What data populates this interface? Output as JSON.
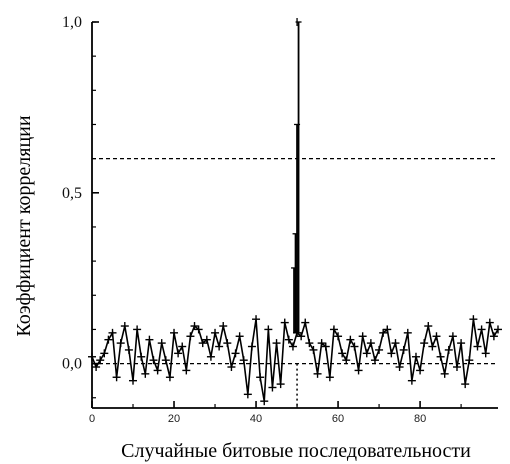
{
  "chart_data": {
    "type": "line",
    "xlabel": "Случайные битовые последовательности",
    "ylabel": "Коэффициент корреляции",
    "xlim": [
      0,
      99
    ],
    "ylim": [
      -0.13,
      1.0
    ],
    "x_ticks": [
      0,
      20,
      40,
      60,
      80
    ],
    "x_tick_labels": [
      "0",
      "20",
      "40",
      "60",
      "80"
    ],
    "y_ticks": [
      0.0,
      0.5,
      1.0
    ],
    "y_tick_labels": [
      "0,0",
      "0,5",
      "1,0"
    ],
    "threshold": {
      "y": 0.6,
      "style": "dashed"
    },
    "baseline": {
      "y": 0.0,
      "style": "dashed"
    },
    "peak_marker": {
      "x": 50,
      "style": "dotted"
    },
    "grid": false,
    "series": [
      {
        "marker": "plus",
        "color": "#000000",
        "x": [
          0,
          1,
          2,
          3,
          4,
          5,
          6,
          7,
          8,
          9,
          10,
          11,
          12,
          13,
          14,
          15,
          16,
          17,
          18,
          19,
          20,
          21,
          22,
          23,
          24,
          25,
          26,
          27,
          28,
          29,
          30,
          31,
          32,
          33,
          34,
          35,
          36,
          37,
          38,
          39,
          40,
          41,
          42,
          43,
          44,
          45,
          46,
          47,
          48,
          49,
          50,
          51,
          52,
          53,
          54,
          55,
          56,
          57,
          58,
          59,
          60,
          61,
          62,
          63,
          64,
          65,
          66,
          67,
          68,
          69,
          70,
          71,
          72,
          73,
          74,
          75,
          76,
          77,
          78,
          79,
          80,
          81,
          82,
          83,
          84,
          85,
          86,
          87,
          88,
          89,
          90,
          91,
          92,
          93,
          94,
          95,
          96,
          97,
          98,
          99
        ],
        "values": [
          0.02,
          -0.01,
          0.01,
          0.03,
          0.07,
          0.09,
          -0.04,
          0.06,
          0.11,
          0.04,
          -0.05,
          0.1,
          0.02,
          -0.03,
          0.07,
          0.01,
          -0.02,
          0.06,
          0.01,
          -0.04,
          0.09,
          0.03,
          0.05,
          -0.02,
          0.08,
          0.11,
          0.1,
          0.06,
          0.07,
          0.02,
          0.09,
          0.05,
          0.11,
          0.06,
          -0.01,
          0.03,
          0.08,
          0.01,
          -0.09,
          0.05,
          0.13,
          -0.04,
          -0.11,
          0.1,
          -0.07,
          0.06,
          -0.06,
          0.12,
          0.07,
          0.05,
          0.09,
          0.08,
          0.12,
          0.06,
          0.04,
          -0.03,
          0.06,
          0.05,
          -0.04,
          0.1,
          0.08,
          0.03,
          0.01,
          0.07,
          0.05,
          -0.02,
          0.08,
          0.03,
          0.06,
          0.01,
          0.04,
          0.09,
          0.1,
          0.03,
          0.06,
          -0.01,
          0.04,
          0.09,
          -0.05,
          0.02,
          -0.02,
          0.06,
          0.11,
          0.05,
          0.08,
          0.02,
          -0.03,
          0.04,
          0.08,
          -0.01,
          0.06,
          -0.06,
          0.01,
          0.13,
          0.05,
          0.1,
          0.03,
          0.12,
          0.08,
          0.1
        ],
        "peak": {
          "x": 50,
          "values": [
            0.28,
            0.38,
            0.7,
            1.0
          ]
        }
      }
    ]
  }
}
